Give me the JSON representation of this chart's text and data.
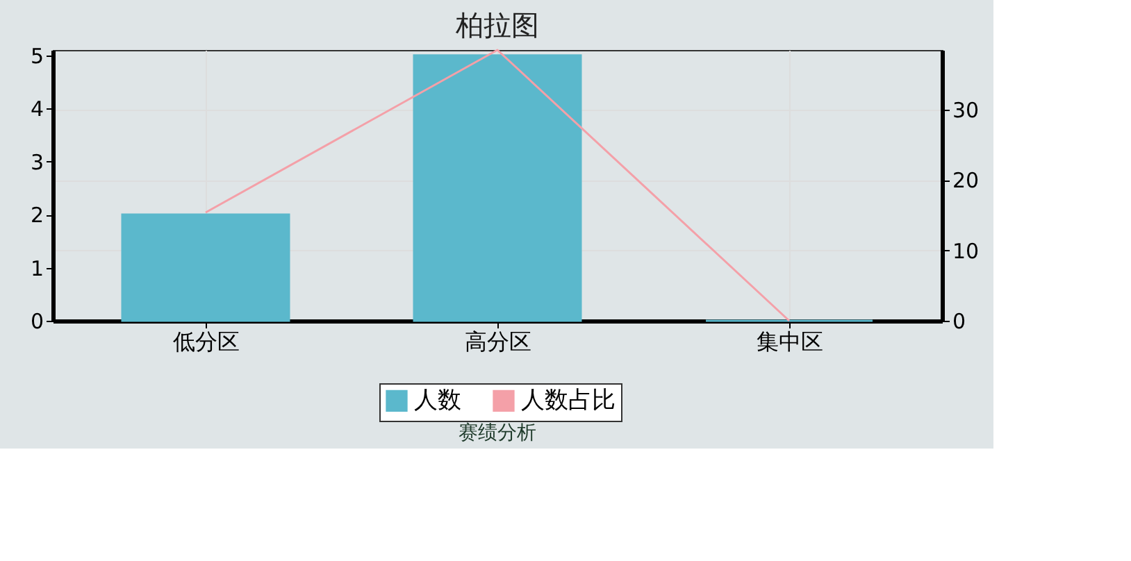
{
  "chart_data": {
    "type": "bar",
    "title": "柏拉图",
    "categories": [
      "低分区",
      "高分区",
      "集中区"
    ],
    "series": [
      {
        "name": "人数",
        "color": "#5bb8cc",
        "values": [
          2,
          5,
          0
        ]
      },
      {
        "name": "人数占比",
        "type": "line",
        "color": "#f4a0a8",
        "axis": "y2",
        "values": [
          15.4,
          38.5,
          0
        ]
      }
    ],
    "ylim": [
      0,
      5.1
    ],
    "yticks": [
      0,
      1,
      2,
      3,
      4,
      5
    ],
    "y2lim": [
      0,
      38.5
    ],
    "y2ticks": [
      0,
      10,
      20,
      30
    ],
    "grid": true,
    "legend": "bottom",
    "annotations": [
      "赛绩分析"
    ]
  }
}
